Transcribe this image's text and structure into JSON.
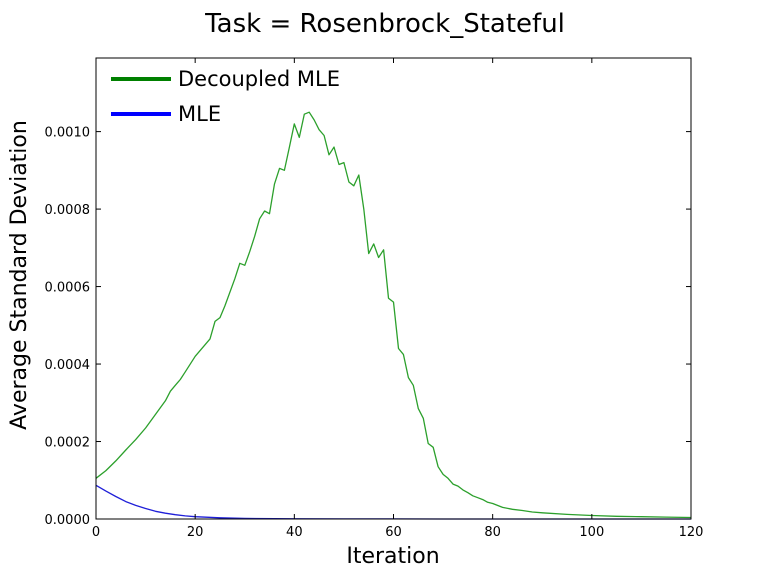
{
  "chart_data": {
    "type": "line",
    "title": "Task = Rosenbrock_Stateful",
    "xlabel": "Iteration",
    "ylabel": "Average Standard Deviation",
    "xlim": [
      0,
      120
    ],
    "ylim": [
      0,
      0.00119
    ],
    "xticks": [
      0,
      20,
      40,
      60,
      80,
      100,
      120
    ],
    "xtick_labels": [
      "0",
      "20",
      "40",
      "60",
      "80",
      "100",
      "120"
    ],
    "yticks": [
      0,
      0.0002,
      0.0004,
      0.0006,
      0.0008,
      0.001
    ],
    "ytick_labels": [
      "0.0000",
      "0.0002",
      "0.0004",
      "0.0006",
      "0.0008",
      "0.0010"
    ],
    "grid": false,
    "legend_position": "top-left",
    "series": [
      {
        "name": "Decoupled MLE",
        "color": "#2ca02c",
        "legend_color": "#008000",
        "x": [
          0,
          2,
          4,
          6,
          8,
          10,
          12,
          14,
          15,
          16,
          17,
          18,
          20,
          22,
          23,
          24,
          25,
          26,
          28,
          29,
          30,
          31,
          32,
          33,
          34,
          35,
          36,
          37,
          38,
          39,
          40,
          41,
          42,
          43,
          44,
          45,
          46,
          47,
          48,
          49,
          50,
          51,
          52,
          53,
          54,
          55,
          56,
          57,
          58,
          59,
          60,
          61,
          62,
          63,
          64,
          65,
          66,
          67,
          68,
          69,
          70,
          71,
          72,
          73,
          74,
          75,
          76,
          77,
          78,
          79,
          80,
          82,
          84,
          86,
          88,
          90,
          95,
          100,
          105,
          110,
          115,
          120
        ],
        "y": [
          0.000105,
          0.000125,
          0.00015,
          0.000178,
          0.000205,
          0.000235,
          0.00027,
          0.000305,
          0.00033,
          0.000345,
          0.00036,
          0.00038,
          0.00042,
          0.00045,
          0.000465,
          0.00051,
          0.00052,
          0.00055,
          0.00062,
          0.00066,
          0.000655,
          0.00069,
          0.00073,
          0.000775,
          0.000795,
          0.000788,
          0.000865,
          0.000905,
          0.0009,
          0.00096,
          0.00102,
          0.000985,
          0.001045,
          0.00105,
          0.00103,
          0.001005,
          0.00099,
          0.00094,
          0.00096,
          0.000915,
          0.00092,
          0.00087,
          0.00086,
          0.000888,
          0.0008,
          0.000685,
          0.00071,
          0.000675,
          0.000695,
          0.00057,
          0.00056,
          0.00044,
          0.000425,
          0.000365,
          0.000345,
          0.000285,
          0.00026,
          0.000195,
          0.000185,
          0.000135,
          0.000115,
          0.000105,
          9e-05,
          8.5e-05,
          7.5e-05,
          6.8e-05,
          6e-05,
          5.5e-05,
          5e-05,
          4.3e-05,
          4e-05,
          3e-05,
          2.5e-05,
          2.2e-05,
          1.8e-05,
          1.6e-05,
          1.2e-05,
          9e-06,
          7e-06,
          6e-06,
          5e-06,
          4e-06
        ]
      },
      {
        "name": "MLE",
        "color": "#1f1fd8",
        "legend_color": "#0000ff",
        "x": [
          0,
          2,
          4,
          6,
          8,
          10,
          12,
          14,
          16,
          18,
          20,
          25,
          30,
          40,
          50,
          60,
          70,
          80,
          90,
          100,
          110,
          120
        ],
        "y": [
          8.7e-05,
          7.2e-05,
          5.8e-05,
          4.5e-05,
          3.5e-05,
          2.7e-05,
          2e-05,
          1.5e-05,
          1.1e-05,
          8e-06,
          6e-06,
          3e-06,
          1.5e-06,
          6e-07,
          3e-07,
          2e-07,
          1e-07,
          1e-07,
          1e-07,
          1e-07,
          1e-07,
          1e-07
        ]
      }
    ]
  }
}
